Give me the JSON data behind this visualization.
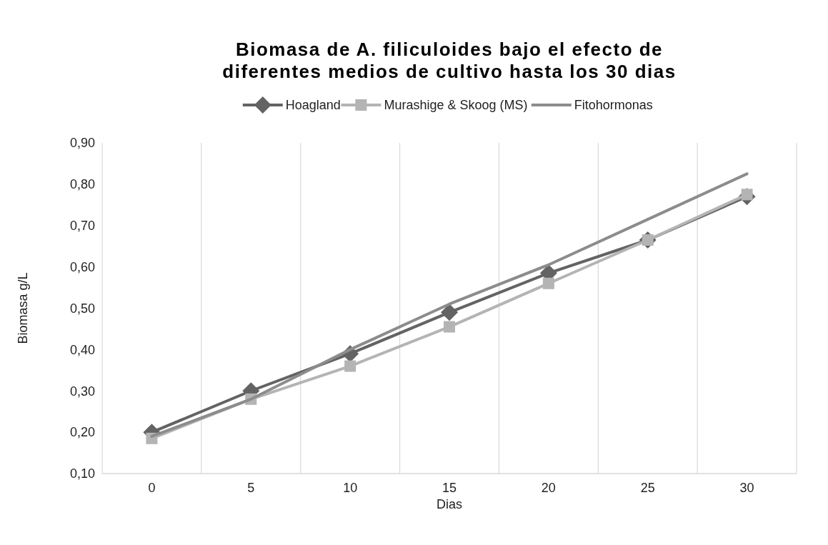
{
  "chart_data": {
    "type": "line",
    "title": "Biomasa de A. filiculoides bajo el efecto de diferentes medios de cultivo hasta los 30 dias",
    "xlabel": "Dias",
    "ylabel": "Biomasa g/L",
    "categories": [
      "0",
      "5",
      "10",
      "15",
      "20",
      "25",
      "30"
    ],
    "series": [
      {
        "name": "Hoagland",
        "color": "#636363",
        "marker": "diamond",
        "values": [
          0.2,
          0.3,
          0.39,
          0.49,
          0.585,
          0.665,
          0.77
        ]
      },
      {
        "name": "Murashige & Skoog (MS)",
        "color": "#b4b4b4",
        "marker": "square",
        "values": [
          0.185,
          0.28,
          0.36,
          0.455,
          0.56,
          0.665,
          0.775
        ]
      },
      {
        "name": "Fitohormonas",
        "color": "#8c8c8c",
        "marker": "none",
        "values": [
          0.19,
          0.28,
          0.4,
          0.51,
          0.605,
          0.715,
          0.825
        ]
      }
    ],
    "ylim": [
      0.1,
      0.9
    ],
    "yticks": [
      {
        "value": 0.1,
        "label": "0,10"
      },
      {
        "value": 0.2,
        "label": "0,20"
      },
      {
        "value": 0.3,
        "label": "0,30"
      },
      {
        "value": 0.4,
        "label": "0,40"
      },
      {
        "value": 0.5,
        "label": "0,50"
      },
      {
        "value": 0.6,
        "label": "0,60"
      },
      {
        "value": 0.7,
        "label": "0,70"
      },
      {
        "value": 0.8,
        "label": "0,80"
      },
      {
        "value": 0.9,
        "label": "0,90"
      }
    ],
    "grid": "x",
    "legend": "top",
    "line_style": "solid"
  }
}
